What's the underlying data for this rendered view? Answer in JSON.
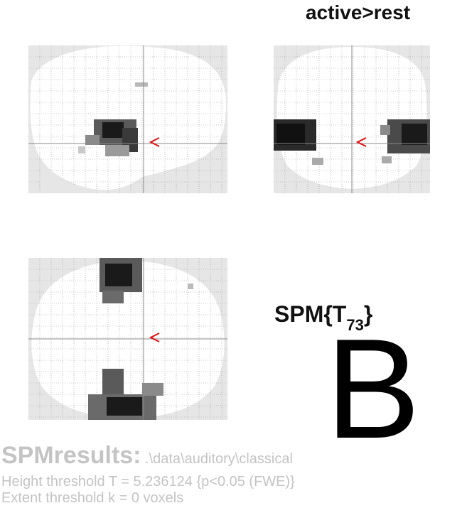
{
  "contrast_title": "active>rest",
  "statistic": {
    "base": "SPM{T",
    "df": "73",
    "close": "}"
  },
  "panel_letter": "B",
  "footer": {
    "title": "SPMresults:",
    "path": " .\\data\\auditory\\classical",
    "height_threshold": "Height threshold T = 5.236124  {p<0.05 (FWE)}",
    "extent_threshold": "Extent threshold k = 0 voxels"
  },
  "colors": {
    "grid": "#9a9a9a",
    "brain_mask": "#e6e6e6",
    "cursor_marker": "#e01010",
    "footer_text": "#c4c4c4"
  }
}
